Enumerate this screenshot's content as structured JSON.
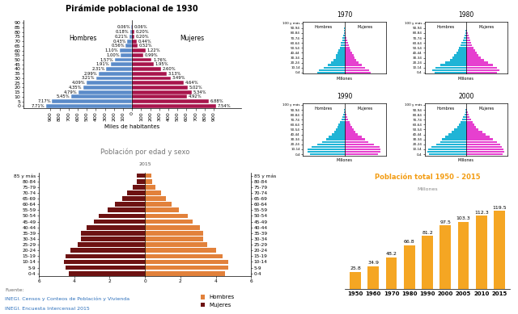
{
  "chart_data": [
    {
      "type": "bar",
      "orientation": "horizontal",
      "title": "Pirámide poblacional de 1930",
      "xlabel": "Miles de habitantes",
      "y": [
        0,
        5,
        10,
        15,
        20,
        25,
        30,
        35,
        40,
        45,
        50,
        55,
        60,
        65,
        70,
        75,
        80,
        85
      ],
      "ylim": [
        -2.5,
        92.5
      ],
      "yticks": [
        0,
        5,
        10,
        15,
        20,
        25,
        30,
        35,
        40,
        45,
        50,
        55,
        60,
        65,
        70,
        75,
        80,
        85,
        90
      ],
      "xlim": [
        0,
        1200
      ],
      "xticks": [
        0,
        100,
        200,
        300,
        400,
        500,
        600,
        700,
        800,
        900
      ],
      "series": [
        {
          "name": "Hombres",
          "color": "#5b8bc9",
          "values": [
            948,
            882,
            670,
            589,
            535,
            503,
            395,
            368,
            284,
            235,
            193,
            123,
            135,
            69,
            53,
            26,
            22,
            7
          ],
          "percent_labels": [
            "7.71%",
            "7.17%",
            "5.45%",
            "4.79%",
            "4.35%",
            "4.09%",
            "3.21%",
            "2.99%",
            "2.31%",
            "1.91%",
            "1.57%",
            "1.00%",
            "1.10%",
            "0.56%",
            "0.43%",
            "0.21%",
            "0.18%",
            "0.06%"
          ]
        },
        {
          "name": "Mujeres",
          "color": "#a8154c",
          "values": [
            927,
            846,
            605,
            657,
            617,
            571,
            429,
            385,
            320,
            240,
            216,
            122,
            150,
            64,
            54,
            25,
            25,
            7
          ],
          "percent_labels": [
            "7.54%",
            "6.88%",
            "4.92%",
            "5.34%",
            "5.02%",
            "4.64%",
            "3.49%",
            "3.13%",
            "2.60%",
            "1.95%",
            "1.76%",
            "0.99%",
            "1.22%",
            "0.52%",
            "0.44%",
            "0.20%",
            "0.20%",
            "0.06%"
          ]
        }
      ]
    },
    {
      "type": "bar",
      "orientation": "horizontal",
      "title": "1970",
      "xlabel": "Millones",
      "xlim": [
        0,
        6
      ],
      "tick_labels": "y",
      "categories": [
        "0-4",
        null,
        "10-14",
        null,
        "20-24",
        null,
        "30-34",
        null,
        "40-44",
        null,
        "50-54",
        null,
        "60-64",
        null,
        "70-74",
        null,
        "80-84",
        null,
        "90-94",
        null,
        "100 y más"
      ],
      "series": [
        {
          "name": "Hombres",
          "color": "#1fb4d6",
          "values": [
            3.9,
            3.7,
            3.0,
            2.4,
            1.95,
            1.6,
            1.3,
            1.25,
            1.0,
            0.85,
            0.7,
            0.55,
            0.5,
            0.35,
            0.25,
            0.15,
            0.1,
            0.05,
            0.02,
            0.01,
            0.005
          ]
        },
        {
          "name": "Mujeres",
          "color": "#e640cf",
          "values": [
            3.8,
            3.6,
            2.95,
            2.5,
            2.05,
            1.7,
            1.4,
            1.3,
            1.05,
            0.85,
            0.72,
            0.58,
            0.52,
            0.38,
            0.28,
            0.18,
            0.12,
            0.07,
            0.03,
            0.01,
            0.005
          ]
        }
      ]
    },
    {
      "type": "bar",
      "orientation": "horizontal",
      "title": "1980",
      "xlabel": "Millones",
      "xlim": [
        0,
        6
      ],
      "tick_labels": "y",
      "categories": [
        "0-4",
        null,
        "10-14",
        null,
        "20-24",
        null,
        "30-34",
        null,
        "40-44",
        null,
        "50-54",
        null,
        "60-64",
        null,
        "70-74",
        null,
        "80-84",
        null,
        "90-94",
        null,
        "100 y más"
      ],
      "series": [
        {
          "name": "Hombres",
          "color": "#1fb4d6",
          "values": [
            4.6,
            4.9,
            4.5,
            3.8,
            3.0,
            2.4,
            2.0,
            1.7,
            1.4,
            1.2,
            1.0,
            0.8,
            0.65,
            0.5,
            0.38,
            0.25,
            0.15,
            0.08,
            0.03,
            0.01,
            0.005
          ]
        },
        {
          "name": "Mujeres",
          "color": "#e640cf",
          "values": [
            4.5,
            4.8,
            4.4,
            3.9,
            3.2,
            2.6,
            2.1,
            1.8,
            1.5,
            1.25,
            1.05,
            0.85,
            0.7,
            0.55,
            0.42,
            0.3,
            0.2,
            0.1,
            0.04,
            0.015,
            0.006
          ]
        }
      ]
    },
    {
      "type": "bar",
      "orientation": "horizontal",
      "title": "1990",
      "xlabel": "Millones",
      "xlim": [
        0,
        6
      ],
      "tick_labels": "y",
      "categories": [
        "0-4",
        null,
        "10-14",
        null,
        "20-24",
        null,
        "30-34",
        null,
        "40-44",
        null,
        "50-54",
        null,
        "60-64",
        null,
        "70-74",
        null,
        "80-84",
        null,
        "90-94",
        null,
        "100 y más"
      ],
      "series": [
        {
          "name": "Hombres",
          "color": "#1fb4d6",
          "values": [
            5.0,
            5.3,
            5.3,
            4.8,
            3.9,
            3.2,
            2.7,
            2.3,
            1.8,
            1.5,
            1.25,
            1.0,
            0.85,
            0.65,
            0.48,
            0.32,
            0.2,
            0.1,
            0.04,
            0.01,
            0.005
          ]
        },
        {
          "name": "Mujeres",
          "color": "#e640cf",
          "values": [
            4.9,
            5.2,
            5.2,
            5.1,
            4.3,
            3.5,
            3.0,
            2.5,
            1.95,
            1.6,
            1.3,
            1.05,
            0.9,
            0.7,
            0.52,
            0.38,
            0.26,
            0.13,
            0.05,
            0.02,
            0.008
          ]
        }
      ]
    },
    {
      "type": "bar",
      "orientation": "horizontal",
      "title": "2000",
      "xlabel": "Millones",
      "xlim": [
        0,
        6
      ],
      "tick_labels": "y",
      "categories": [
        "0-4",
        null,
        "10-14",
        null,
        "20-24",
        null,
        "30-34",
        null,
        "40-44",
        null,
        "50-54",
        null,
        "60-64",
        null,
        "70-74",
        null,
        "80-84",
        null,
        "90-94",
        null,
        "100 y más"
      ],
      "series": [
        {
          "name": "Hombres",
          "color": "#1fb4d6",
          "values": [
            5.4,
            5.6,
            5.5,
            5.0,
            4.3,
            3.8,
            3.5,
            3.1,
            2.6,
            2.1,
            1.7,
            1.3,
            1.1,
            0.85,
            0.62,
            0.42,
            0.27,
            0.14,
            0.06,
            0.02,
            0.006
          ]
        },
        {
          "name": "Mujeres",
          "color": "#e640cf",
          "values": [
            5.3,
            5.5,
            5.4,
            5.2,
            4.9,
            4.4,
            3.9,
            3.4,
            2.8,
            2.3,
            1.8,
            1.4,
            1.2,
            0.95,
            0.7,
            0.5,
            0.35,
            0.2,
            0.08,
            0.03,
            0.01
          ]
        }
      ]
    },
    {
      "type": "bar",
      "orientation": "horizontal",
      "title": "Población por edad y sexo",
      "subtitle": "2015",
      "categories": [
        "0-4",
        "5-9",
        "10-14",
        "15-19",
        "20-24",
        "25-29",
        "30-34",
        "35-39",
        "40-44",
        "45-49",
        "50-54",
        "55-59",
        "60-64",
        "65-69",
        "70-74",
        "75-79",
        "80-84",
        "85 y más"
      ],
      "xlim": [
        0,
        6
      ],
      "xticks": [
        0,
        2,
        4,
        6
      ],
      "legend": "lower center",
      "annotations": [
        "Fuente:",
        "INEGI. Censos y Conteos de Población y Vivienda",
        "INEGI. Encuesta Intercensal 2015"
      ],
      "series": [
        {
          "name": "Mujeres",
          "color": "#6d1212",
          "values": [
            4.3,
            4.5,
            4.6,
            4.5,
            4.2,
            3.8,
            3.6,
            3.6,
            3.3,
            2.9,
            2.6,
            2.1,
            1.7,
            1.3,
            1.0,
            0.7,
            0.45,
            0.45
          ]
        },
        {
          "name": "Hombres",
          "color": "#e2813b",
          "values": [
            4.5,
            4.7,
            4.7,
            4.4,
            4.0,
            3.5,
            3.3,
            3.3,
            3.1,
            2.7,
            2.4,
            1.9,
            1.5,
            1.2,
            0.9,
            0.6,
            0.4,
            0.35
          ]
        }
      ]
    },
    {
      "type": "bar",
      "title": "Población total 1950 - 2015",
      "subtitle": "Millones",
      "categories": [
        "1950",
        "1960",
        "1970",
        "1980",
        "1990",
        "2000",
        "2005",
        "2010",
        "2015"
      ],
      "values": [
        25.8,
        34.9,
        48.2,
        66.8,
        81.2,
        97.5,
        103.3,
        112.3,
        119.5
      ],
      "color": "#f5a623",
      "ylim": [
        0,
        135
      ],
      "data_labels": true,
      "tick_labels": "x"
    }
  ]
}
